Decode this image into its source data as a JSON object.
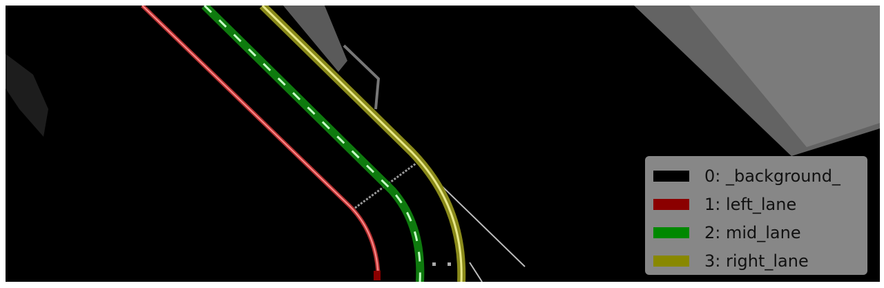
{
  "legend": {
    "items": [
      {
        "label": "0: _background_",
        "color": "#000000"
      },
      {
        "label": "1: left_lane",
        "color": "#8b0000"
      },
      {
        "label": "2: mid_lane",
        "color": "#008800"
      },
      {
        "label": "3: right_lane",
        "color": "#888800"
      }
    ]
  },
  "colors": {
    "left_lane": "#e74a4a",
    "mid_lane": "#16a016",
    "right_lane": "#c8c838",
    "background": "#000000"
  }
}
